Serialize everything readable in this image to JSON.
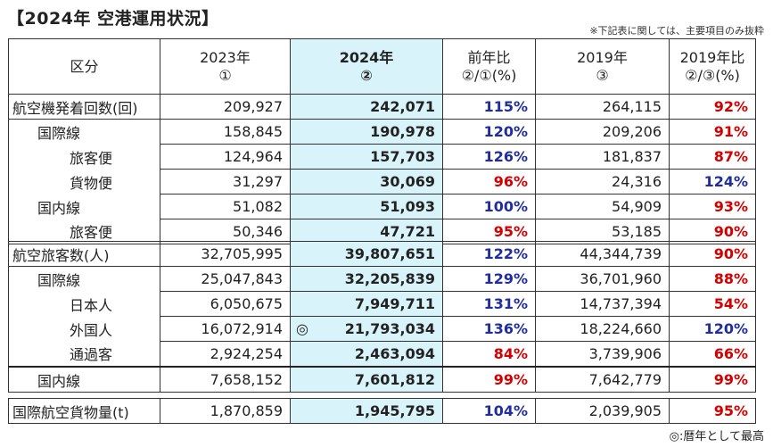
{
  "title": "【2024年 空港運用状況】",
  "note": "※下記表に関しては、主要項目のみ抜粋",
  "footnote": "◎:暦年として最高",
  "record_mark": "◎",
  "header": {
    "category": "区分",
    "y2023": "2023年",
    "y2023_sub": "①",
    "y2024": "2024年",
    "y2024_sub": "②",
    "yoy": "前年比",
    "yoy_sub": "②/①(%)",
    "y2019": "2019年",
    "y2019_sub": "③",
    "vs2019": "2019年比",
    "vs2019_sub": "②/③(%)"
  },
  "rows": [
    {
      "label": "航空機発着回数(回)",
      "v2023": "209,927",
      "v2024": "242,071",
      "yoy": "115%",
      "v2019": "264,115",
      "vs2019": "92%"
    },
    {
      "label": "国際線",
      "v2023": "158,845",
      "v2024": "190,978",
      "yoy": "120%",
      "v2019": "209,206",
      "vs2019": "91%"
    },
    {
      "label": "旅客便",
      "v2023": "124,964",
      "v2024": "157,703",
      "yoy": "126%",
      "v2019": "181,837",
      "vs2019": "87%"
    },
    {
      "label": "貨物便",
      "v2023": "31,297",
      "v2024": "30,069",
      "yoy": "96%",
      "v2019": "24,316",
      "vs2019": "124%"
    },
    {
      "label": "国内線",
      "v2023": "51,082",
      "v2024": "51,093",
      "yoy": "100%",
      "v2019": "54,909",
      "vs2019": "93%"
    },
    {
      "label": "旅客便",
      "v2023": "50,346",
      "v2024": "47,721",
      "yoy": "95%",
      "v2019": "53,185",
      "vs2019": "90%"
    },
    {
      "label": "航空旅客数(人)",
      "v2023": "32,705,995",
      "v2024": "39,807,651",
      "yoy": "122%",
      "v2019": "44,344,739",
      "vs2019": "90%"
    },
    {
      "label": "国際線",
      "v2023": "25,047,843",
      "v2024": "32,205,839",
      "yoy": "129%",
      "v2019": "36,701,960",
      "vs2019": "88%"
    },
    {
      "label": "日本人",
      "v2023": "6,050,675",
      "v2024": "7,949,711",
      "yoy": "131%",
      "v2019": "14,737,394",
      "vs2019": "54%"
    },
    {
      "label": "外国人",
      "v2023": "16,072,914",
      "v2024": "21,793,034",
      "yoy": "136%",
      "v2019": "18,224,660",
      "vs2019": "120%"
    },
    {
      "label": "通過客",
      "v2023": "2,924,254",
      "v2024": "2,463,094",
      "yoy": "84%",
      "v2019": "3,739,906",
      "vs2019": "66%"
    },
    {
      "label": "国内線",
      "v2023": "7,658,152",
      "v2024": "7,601,812",
      "yoy": "99%",
      "v2019": "7,642,779",
      "vs2019": "99%"
    },
    {
      "label": "国際航空貨物量(t)",
      "v2023": "1,870,859",
      "v2024": "1,945,795",
      "yoy": "104%",
      "v2019": "2,039,905",
      "vs2019": "95%"
    }
  ],
  "colors": {
    "blue": "#1f2d9e",
    "red": "#d40000",
    "highlight": "#d9f3fb"
  }
}
